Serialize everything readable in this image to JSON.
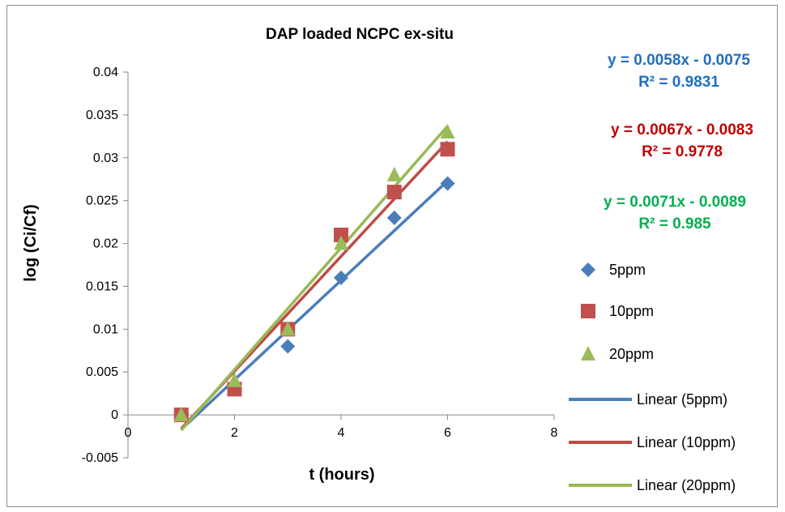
{
  "chart_data": {
    "type": "scatter",
    "title": "DAP loaded NCPC ex-situ",
    "xlabel": "t (hours)",
    "ylabel": "log (Ci/Cf)",
    "xlim": [
      0,
      8
    ],
    "ylim": [
      -0.005,
      0.04
    ],
    "x_ticks": [
      "0",
      "2",
      "4",
      "6",
      "8"
    ],
    "y_ticks": [
      "-0.005",
      "0",
      "0.005",
      "0.01",
      "0.015",
      "0.02",
      "0.025",
      "0.03",
      "0.035",
      "0.04"
    ],
    "grid": false,
    "legend_position": "right",
    "series": [
      {
        "name": "5ppm",
        "marker": "diamond",
        "color": "#4a7ebb",
        "x": [
          1,
          2,
          3,
          4,
          5,
          6
        ],
        "y": [
          0,
          0.003,
          0.008,
          0.016,
          0.023,
          0.027
        ],
        "trendline": {
          "name": "Linear (5ppm)",
          "slope": 0.0058,
          "intercept": -0.0075,
          "equation": "y = 0.0058x - 0.0075",
          "r2": "R² = 0.9831",
          "color": "#4a7ebb",
          "label_color": "#1f6fbf"
        }
      },
      {
        "name": "10ppm",
        "marker": "square",
        "color": "#c0504d",
        "x": [
          1,
          2,
          3,
          4,
          5,
          6
        ],
        "y": [
          0,
          0.003,
          0.01,
          0.021,
          0.026,
          0.031
        ],
        "trendline": {
          "name": "Linear (10ppm)",
          "slope": 0.0067,
          "intercept": -0.0083,
          "equation": "y = 0.0067x - 0.0083",
          "r2": "R² = 0.9778",
          "color": "#be4b48",
          "label_color": "#c00000"
        }
      },
      {
        "name": "20ppm",
        "marker": "triangle",
        "color": "#9bbb59",
        "x": [
          1,
          2,
          3,
          4,
          5,
          6
        ],
        "y": [
          0,
          0.004,
          0.01,
          0.02,
          0.028,
          0.033
        ],
        "trendline": {
          "name": "Linear (20ppm)",
          "slope": 0.0071,
          "intercept": -0.0089,
          "equation": "y = 0.0071x - 0.0089",
          "r2": "R² = 0.985",
          "color": "#98b954",
          "label_color": "#00b050"
        }
      }
    ]
  }
}
